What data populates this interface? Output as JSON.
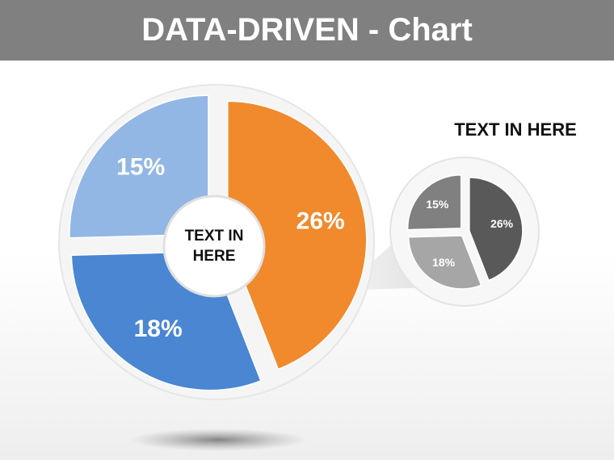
{
  "header": {
    "title": "DATA-DRIVEN - Chart"
  },
  "chart_data": [
    {
      "type": "pie",
      "center_label": "TEXT IN HERE",
      "values": [
        26,
        18,
        15
      ],
      "value_labels": [
        "26%",
        "18%",
        "15%"
      ],
      "colors": [
        "#f08a2c",
        "#4a86d2",
        "#93b7e4"
      ]
    },
    {
      "type": "pie",
      "title": "TEXT IN HERE",
      "values": [
        26,
        18,
        15
      ],
      "value_labels": [
        "26%",
        "18%",
        "15%"
      ],
      "colors": [
        "#595959",
        "#a6a6a6",
        "#808080"
      ]
    }
  ]
}
